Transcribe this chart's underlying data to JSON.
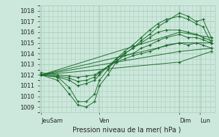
{
  "xlabel": "Pression niveau de la mer( hPa )",
  "ylim": [
    1008.5,
    1018.5
  ],
  "yticks": [
    1009,
    1010,
    1011,
    1012,
    1013,
    1014,
    1015,
    1016,
    1017,
    1018
  ],
  "bg_color": "#cce8dc",
  "grid_color": "#aaccbb",
  "line_color": "#1a6b2a",
  "x_labels": [
    "JeuSam",
    "Ven",
    "Dim",
    "Lun"
  ],
  "x_tick_pos": [
    0.0,
    0.35,
    0.83,
    0.95
  ],
  "xlim": [
    -0.01,
    1.04
  ],
  "lines": [
    {
      "x": [
        0.0,
        0.1,
        0.17,
        0.22,
        0.27,
        0.32,
        0.35,
        0.4,
        0.45,
        0.5,
        0.55,
        0.6,
        0.65,
        0.7,
        0.75,
        0.83,
        0.88,
        0.93,
        0.97,
        1.02
      ],
      "y": [
        1012.0,
        1011.5,
        1010.2,
        1009.2,
        1009.0,
        1009.5,
        1011.0,
        1012.0,
        1013.2,
        1014.0,
        1014.5,
        1015.2,
        1015.8,
        1016.5,
        1017.0,
        1017.8,
        1017.5,
        1017.0,
        1017.2,
        1015.5
      ]
    },
    {
      "x": [
        0.0,
        0.1,
        0.17,
        0.22,
        0.27,
        0.32,
        0.35,
        0.4,
        0.45,
        0.5,
        0.55,
        0.6,
        0.65,
        0.7,
        0.75,
        0.83,
        0.88,
        0.93,
        0.97,
        1.02
      ],
      "y": [
        1012.0,
        1011.8,
        1010.8,
        1009.5,
        1009.5,
        1010.2,
        1011.5,
        1012.5,
        1013.5,
        1014.2,
        1014.8,
        1015.5,
        1016.2,
        1016.8,
        1017.2,
        1017.5,
        1017.2,
        1016.8,
        1016.5,
        1015.0
      ]
    },
    {
      "x": [
        0.0,
        0.1,
        0.17,
        0.22,
        0.27,
        0.32,
        0.35,
        0.4,
        0.45,
        0.5,
        0.55,
        0.6,
        0.65,
        0.7,
        0.75,
        0.83,
        0.88,
        0.93,
        0.97,
        1.02
      ],
      "y": [
        1012.0,
        1011.8,
        1011.5,
        1011.0,
        1011.2,
        1011.5,
        1012.0,
        1012.8,
        1013.5,
        1014.0,
        1014.5,
        1015.0,
        1015.5,
        1016.0,
        1016.2,
        1016.2,
        1016.0,
        1015.8,
        1015.5,
        1015.2
      ]
    },
    {
      "x": [
        0.0,
        0.1,
        0.17,
        0.22,
        0.27,
        0.32,
        0.35,
        0.4,
        0.45,
        0.5,
        0.55,
        0.6,
        0.65,
        0.7,
        0.75,
        0.83,
        0.88,
        0.93,
        0.97,
        1.02
      ],
      "y": [
        1012.0,
        1011.9,
        1011.7,
        1011.4,
        1011.5,
        1011.8,
        1012.2,
        1012.8,
        1013.3,
        1013.8,
        1014.0,
        1014.5,
        1014.8,
        1015.2,
        1015.5,
        1015.8,
        1015.5,
        1015.5,
        1015.3,
        1015.0
      ]
    },
    {
      "x": [
        0.0,
        0.1,
        0.17,
        0.22,
        0.27,
        0.32,
        0.35,
        0.4,
        0.45,
        0.5,
        0.55,
        0.6,
        0.65,
        0.7,
        0.75,
        0.83,
        0.88,
        0.93,
        0.97,
        1.02
      ],
      "y": [
        1012.2,
        1012.0,
        1011.9,
        1011.8,
        1011.9,
        1012.0,
        1012.3,
        1012.8,
        1013.2,
        1013.5,
        1013.8,
        1014.0,
        1014.2,
        1014.5,
        1014.8,
        1015.0,
        1014.8,
        1015.0,
        1014.8,
        1014.5
      ]
    },
    {
      "x": [
        0.0,
        0.83,
        1.02
      ],
      "y": [
        1012.0,
        1016.0,
        1015.5
      ]
    },
    {
      "x": [
        0.0,
        0.83,
        1.02
      ],
      "y": [
        1012.0,
        1015.0,
        1015.0
      ]
    },
    {
      "x": [
        0.0,
        0.83,
        1.02
      ],
      "y": [
        1012.0,
        1014.2,
        1014.5
      ]
    },
    {
      "x": [
        0.0,
        0.83,
        1.02
      ],
      "y": [
        1012.0,
        1013.2,
        1014.2
      ]
    }
  ],
  "vlines": [
    0.0,
    0.35,
    0.83,
    0.95
  ],
  "xlabel_fontsize": 7,
  "tick_labelsize": 6
}
